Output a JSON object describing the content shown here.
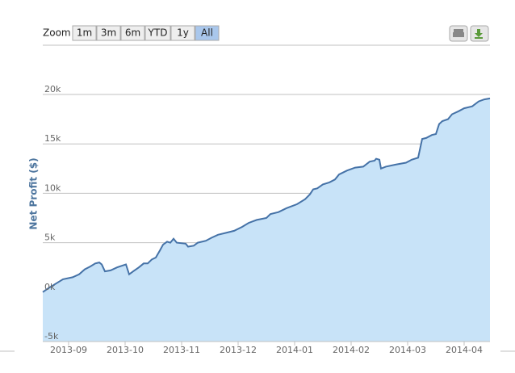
{
  "range_selector": {
    "label": "Zoom",
    "buttons": [
      "1m",
      "3m",
      "6m",
      "YTD",
      "1y",
      "All"
    ],
    "selected": 5
  },
  "chart_data": {
    "type": "area",
    "y_axis_label": "Net Profit ($)",
    "xlim": [
      -0.457,
      7.457
    ],
    "xticks": [
      {
        "value": 0,
        "label": "2013-09"
      },
      {
        "value": 1,
        "label": "2013-10"
      },
      {
        "value": 2,
        "label": "2013-11"
      },
      {
        "value": 3,
        "label": "2013-12"
      },
      {
        "value": 4,
        "label": "2014-01"
      },
      {
        "value": 5,
        "label": "2014-02"
      },
      {
        "value": 6,
        "label": "2014-03"
      },
      {
        "value": 7,
        "label": "2014-04"
      }
    ],
    "ylim": [
      -5000,
      20000
    ],
    "yticks": [
      {
        "value": -5000,
        "label": "-5k"
      },
      {
        "value": 0,
        "label": "0k"
      },
      {
        "value": 5000,
        "label": "5k"
      },
      {
        "value": 10000,
        "label": "10k"
      },
      {
        "value": 15000,
        "label": "15k"
      },
      {
        "value": 20000,
        "label": "20k"
      }
    ],
    "grid": true,
    "x": [
      -0.457,
      -0.357,
      -0.214,
      -0.1,
      0.071,
      0.186,
      0.286,
      0.386,
      0.471,
      0.543,
      0.586,
      0.643,
      0.743,
      0.857,
      0.957,
      1.014,
      1.071,
      1.143,
      1.243,
      1.329,
      1.4,
      1.471,
      1.543,
      1.614,
      1.671,
      1.743,
      1.8,
      1.857,
      1.914,
      2.071,
      2.114,
      2.214,
      2.286,
      2.429,
      2.529,
      2.643,
      2.786,
      2.929,
      3.071,
      3.186,
      3.329,
      3.5,
      3.571,
      3.714,
      3.857,
      4.043,
      4.186,
      4.271,
      4.329,
      4.4,
      4.5,
      4.614,
      4.714,
      4.786,
      4.929,
      5.071,
      5.214,
      5.329,
      5.414,
      5.443,
      5.5,
      5.529,
      5.614,
      5.786,
      5.971,
      6.071,
      6.186,
      6.257,
      6.329,
      6.429,
      6.5,
      6.557,
      6.614,
      6.714,
      6.786,
      6.9,
      7,
      7.143,
      7.257,
      7.357,
      7.457
    ],
    "series": [
      {
        "color": "#4572a7",
        "fill": "#c8e3f8",
        "values": [
          0,
          400,
          900,
          1300,
          1500,
          1800,
          2300,
          2600,
          2900,
          3000,
          2800,
          2100,
          2200,
          2500,
          2700,
          2800,
          1800,
          2100,
          2500,
          2900,
          2900,
          3300,
          3500,
          4200,
          4800,
          5100,
          5000,
          5400,
          5000,
          4900,
          4600,
          4700,
          5000,
          5200,
          5500,
          5800,
          6000,
          6200,
          6600,
          7000,
          7300,
          7500,
          7900,
          8100,
          8500,
          8900,
          9400,
          9900,
          10400,
          10500,
          10900,
          11100,
          11400,
          11900,
          12300,
          12600,
          12700,
          13200,
          13300,
          13500,
          13400,
          12500,
          12700,
          12900,
          13100,
          13400,
          13600,
          15500,
          15600,
          15900,
          16000,
          17000,
          17300,
          17500,
          18000,
          18300,
          18600,
          18800,
          19300,
          19500,
          19600
        ]
      }
    ]
  }
}
